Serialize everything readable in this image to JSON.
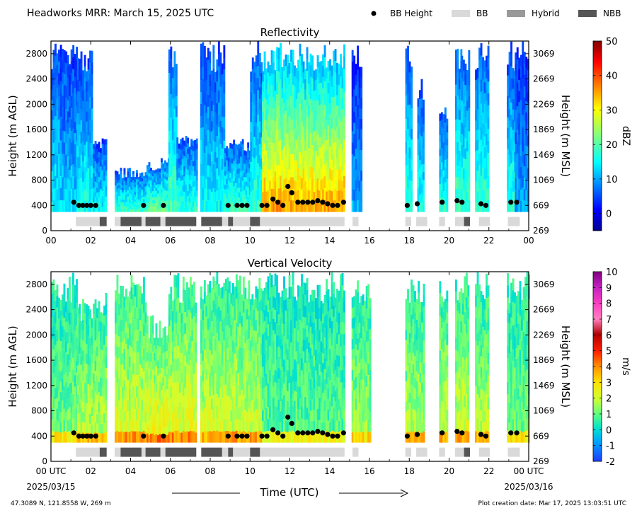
{
  "header": {
    "title": "Headworks MRR:  March 15, 2025 UTC",
    "legend": [
      {
        "label": "BB Height",
        "kind": "dot",
        "color": "#000000"
      },
      {
        "label": "BB",
        "kind": "swatch",
        "color": "#d9d9d9"
      },
      {
        "label": "Hybrid",
        "kind": "swatch",
        "color": "#999999"
      },
      {
        "label": "NBB",
        "kind": "swatch",
        "color": "#555555"
      }
    ]
  },
  "footer": {
    "location": "47.3089 N, 121.8558 W, 269 m",
    "created": "Plot creation date: Mar 17, 2025 13:03:51 UTC",
    "xlabel": "Time (UTC)",
    "start_label": "00 UTC",
    "start_date": "2025/03/15",
    "end_label": "00 UTC",
    "end_date": "2025/03/16"
  },
  "chart_data": [
    {
      "type": "heatmap",
      "title": "Reflectivity",
      "ylabel": "Height (m AGL)",
      "ylabel_right": "Height (m MSL)",
      "colorbar_label": "dBZ",
      "colormap": "jet",
      "xlim": [
        0,
        24
      ],
      "ylim": [
        0,
        3000
      ],
      "x_ticks": [
        "00",
        "02",
        "04",
        "06",
        "08",
        "10",
        "12",
        "14",
        "16",
        "18",
        "20",
        "22",
        "00"
      ],
      "y_ticks": [
        0,
        400,
        800,
        1200,
        1600,
        2000,
        2400,
        2800
      ],
      "y_ticks_right": [
        269,
        669,
        1069,
        1469,
        1869,
        2269,
        2669,
        3069
      ],
      "colorbar_range": [
        -5,
        50
      ],
      "colorbar_ticks": [
        0,
        10,
        20,
        30,
        40,
        50
      ],
      "echo_periods": [
        {
          "start": 0.0,
          "end": 0.45,
          "top": 3000,
          "value": 12
        },
        {
          "start": 0.45,
          "end": 1.3,
          "top": 3000,
          "value": 10
        },
        {
          "start": 1.3,
          "end": 2.1,
          "top": 3000,
          "value": 13
        },
        {
          "start": 2.1,
          "end": 2.8,
          "top": 1500,
          "value": 12
        },
        {
          "start": 3.2,
          "end": 4.8,
          "top": 1000,
          "value": 15
        },
        {
          "start": 4.8,
          "end": 5.9,
          "top": 1150,
          "value": 17
        },
        {
          "start": 5.9,
          "end": 6.3,
          "top": 3000,
          "value": 16
        },
        {
          "start": 6.3,
          "end": 7.3,
          "top": 1500,
          "value": 14
        },
        {
          "start": 7.5,
          "end": 8.7,
          "top": 3000,
          "value": 12
        },
        {
          "start": 8.7,
          "end": 10.0,
          "top": 1450,
          "value": 15
        },
        {
          "start": 10.0,
          "end": 10.6,
          "top": 3000,
          "value": 14
        },
        {
          "start": 10.6,
          "end": 14.7,
          "top": 3000,
          "value": 28
        },
        {
          "start": 15.1,
          "end": 15.6,
          "top": 3000,
          "value": 8
        },
        {
          "start": 17.8,
          "end": 18.1,
          "top": 3000,
          "value": 14
        },
        {
          "start": 18.4,
          "end": 18.7,
          "top": 2450,
          "value": 13
        },
        {
          "start": 19.5,
          "end": 19.9,
          "top": 1950,
          "value": 14
        },
        {
          "start": 20.3,
          "end": 20.6,
          "top": 3000,
          "value": 16
        },
        {
          "start": 20.6,
          "end": 21.0,
          "top": 3000,
          "value": 15
        },
        {
          "start": 21.3,
          "end": 22.0,
          "top": 3000,
          "value": 15
        },
        {
          "start": 22.9,
          "end": 23.3,
          "top": 3000,
          "value": 14
        },
        {
          "start": 23.3,
          "end": 24.0,
          "top": 3000,
          "value": 8
        }
      ]
    },
    {
      "type": "heatmap",
      "title": "Vertical Velocity",
      "ylabel": "Height (m AGL)",
      "ylabel_right": "Height (m MSL)",
      "colorbar_label": "m/s",
      "colormap": "velocity",
      "xlim": [
        0,
        24
      ],
      "ylim": [
        0,
        3000
      ],
      "x_ticks": [
        "00 UTC",
        "02",
        "04",
        "06",
        "08",
        "10",
        "12",
        "14",
        "16",
        "18",
        "20",
        "22",
        "00 UTC"
      ],
      "y_ticks": [
        0,
        400,
        800,
        1200,
        1600,
        2000,
        2400,
        2800
      ],
      "y_ticks_right": [
        269,
        669,
        1069,
        1469,
        1869,
        2269,
        2669,
        3069
      ],
      "colorbar_range": [
        -2,
        10
      ],
      "colorbar_ticks": [
        -2,
        -1,
        0,
        1,
        2,
        3,
        4,
        5,
        6,
        7,
        8,
        9,
        10
      ],
      "echo_periods": [
        {
          "start": 0.0,
          "end": 1.3,
          "top": 3000,
          "value": 0.8
        },
        {
          "start": 1.3,
          "end": 2.8,
          "top": 2700,
          "value": 1.2
        },
        {
          "start": 3.2,
          "end": 4.8,
          "top": 3000,
          "value": 1.5
        },
        {
          "start": 4.8,
          "end": 5.9,
          "top": 2400,
          "value": 1.8
        },
        {
          "start": 5.9,
          "end": 7.3,
          "top": 3000,
          "value": 1.6
        },
        {
          "start": 7.5,
          "end": 10.6,
          "top": 3000,
          "value": 1.4
        },
        {
          "start": 10.6,
          "end": 14.7,
          "top": 3000,
          "value": 0.6
        },
        {
          "start": 15.1,
          "end": 16.0,
          "top": 3000,
          "value": 1.0
        },
        {
          "start": 17.8,
          "end": 18.7,
          "top": 3000,
          "value": 1.2
        },
        {
          "start": 19.5,
          "end": 19.9,
          "top": 3000,
          "value": 1.3
        },
        {
          "start": 20.3,
          "end": 21.0,
          "top": 3000,
          "value": 1.4
        },
        {
          "start": 21.3,
          "end": 22.0,
          "top": 3000,
          "value": 1.2
        },
        {
          "start": 22.9,
          "end": 24.0,
          "top": 3000,
          "value": 0.8
        }
      ]
    }
  ],
  "bb_heights": [
    {
      "t": 1.15,
      "h": 450
    },
    {
      "t": 1.4,
      "h": 400
    },
    {
      "t": 1.6,
      "h": 400
    },
    {
      "t": 1.8,
      "h": 400
    },
    {
      "t": 2.0,
      "h": 400
    },
    {
      "t": 2.25,
      "h": 400
    },
    {
      "t": 4.65,
      "h": 400
    },
    {
      "t": 5.65,
      "h": 400
    },
    {
      "t": 8.9,
      "h": 400
    },
    {
      "t": 9.35,
      "h": 400
    },
    {
      "t": 9.6,
      "h": 400
    },
    {
      "t": 9.85,
      "h": 400
    },
    {
      "t": 10.6,
      "h": 400
    },
    {
      "t": 10.85,
      "h": 400
    },
    {
      "t": 11.15,
      "h": 500
    },
    {
      "t": 11.4,
      "h": 450
    },
    {
      "t": 11.65,
      "h": 400
    },
    {
      "t": 11.9,
      "h": 700
    },
    {
      "t": 12.1,
      "h": 600
    },
    {
      "t": 12.4,
      "h": 450
    },
    {
      "t": 12.65,
      "h": 450
    },
    {
      "t": 12.9,
      "h": 450
    },
    {
      "t": 13.15,
      "h": 450
    },
    {
      "t": 13.4,
      "h": 475
    },
    {
      "t": 13.65,
      "h": 450
    },
    {
      "t": 13.9,
      "h": 425
    },
    {
      "t": 14.15,
      "h": 400
    },
    {
      "t": 14.4,
      "h": 400
    },
    {
      "t": 14.7,
      "h": 450
    },
    {
      "t": 17.9,
      "h": 400
    },
    {
      "t": 18.4,
      "h": 425
    },
    {
      "t": 19.65,
      "h": 450
    },
    {
      "t": 20.4,
      "h": 475
    },
    {
      "t": 20.65,
      "h": 450
    },
    {
      "t": 21.6,
      "h": 425
    },
    {
      "t": 21.85,
      "h": 400
    },
    {
      "t": 23.1,
      "h": 450
    },
    {
      "t": 23.4,
      "h": 450
    }
  ],
  "bb_type_bar": [
    {
      "start": 1.25,
      "end": 2.45,
      "type": "BB"
    },
    {
      "start": 2.45,
      "end": 2.8,
      "type": "NBB"
    },
    {
      "start": 3.2,
      "end": 3.5,
      "type": "BB"
    },
    {
      "start": 3.5,
      "end": 4.55,
      "type": "NBB"
    },
    {
      "start": 4.55,
      "end": 4.75,
      "type": "BB"
    },
    {
      "start": 4.75,
      "end": 5.5,
      "type": "NBB"
    },
    {
      "start": 5.5,
      "end": 5.75,
      "type": "BB"
    },
    {
      "start": 5.75,
      "end": 7.3,
      "type": "NBB"
    },
    {
      "start": 7.55,
      "end": 8.6,
      "type": "NBB"
    },
    {
      "start": 8.6,
      "end": 8.9,
      "type": "BB"
    },
    {
      "start": 8.9,
      "end": 9.15,
      "type": "NBB"
    },
    {
      "start": 9.15,
      "end": 10.0,
      "type": "BB"
    },
    {
      "start": 10.0,
      "end": 10.5,
      "type": "NBB"
    },
    {
      "start": 10.5,
      "end": 14.75,
      "type": "BB"
    },
    {
      "start": 15.15,
      "end": 15.45,
      "type": "BB"
    },
    {
      "start": 17.8,
      "end": 18.1,
      "type": "BB"
    },
    {
      "start": 18.35,
      "end": 18.9,
      "type": "BB"
    },
    {
      "start": 19.5,
      "end": 19.8,
      "type": "BB"
    },
    {
      "start": 20.3,
      "end": 20.75,
      "type": "BB"
    },
    {
      "start": 20.75,
      "end": 21.05,
      "type": "NBB"
    },
    {
      "start": 21.5,
      "end": 22.05,
      "type": "BB"
    },
    {
      "start": 22.95,
      "end": 23.55,
      "type": "BB"
    }
  ]
}
